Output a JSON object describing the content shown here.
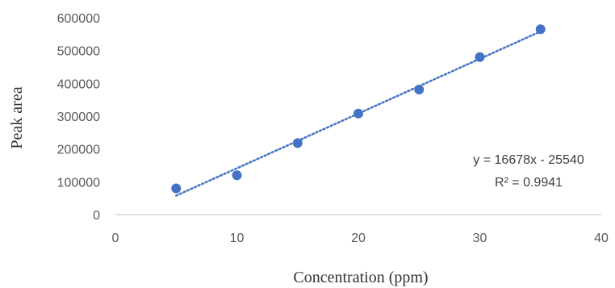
{
  "colors": {
    "marker": "#4472C4",
    "trendline": "#4472C4",
    "axis": "#BFBFBF",
    "tick_text": "#595959"
  },
  "chart_data": {
    "type": "scatter",
    "title": "",
    "xlabel": "Concentration (ppm)",
    "ylabel": "Peak area",
    "xlim": [
      0,
      40
    ],
    "ylim": [
      0,
      600000
    ],
    "x_ticks": [
      "0",
      "10",
      "20",
      "30",
      "40"
    ],
    "y_ticks": [
      "0",
      "100000",
      "200000",
      "300000",
      "400000",
      "500000",
      "600000"
    ],
    "grid": false,
    "legend": "none",
    "series": [
      {
        "x": [
          5,
          10,
          15,
          20,
          25,
          30,
          35
        ],
        "y": [
          80000,
          120000,
          218000,
          308000,
          381000,
          480000,
          565000
        ]
      }
    ],
    "trendline": {
      "type": "linear",
      "slope": 16678,
      "intercept": -25540,
      "x_range": [
        5,
        35
      ],
      "equation_label": "y = 16678x - 25540",
      "r2_label": "R² = 0.9941"
    }
  }
}
